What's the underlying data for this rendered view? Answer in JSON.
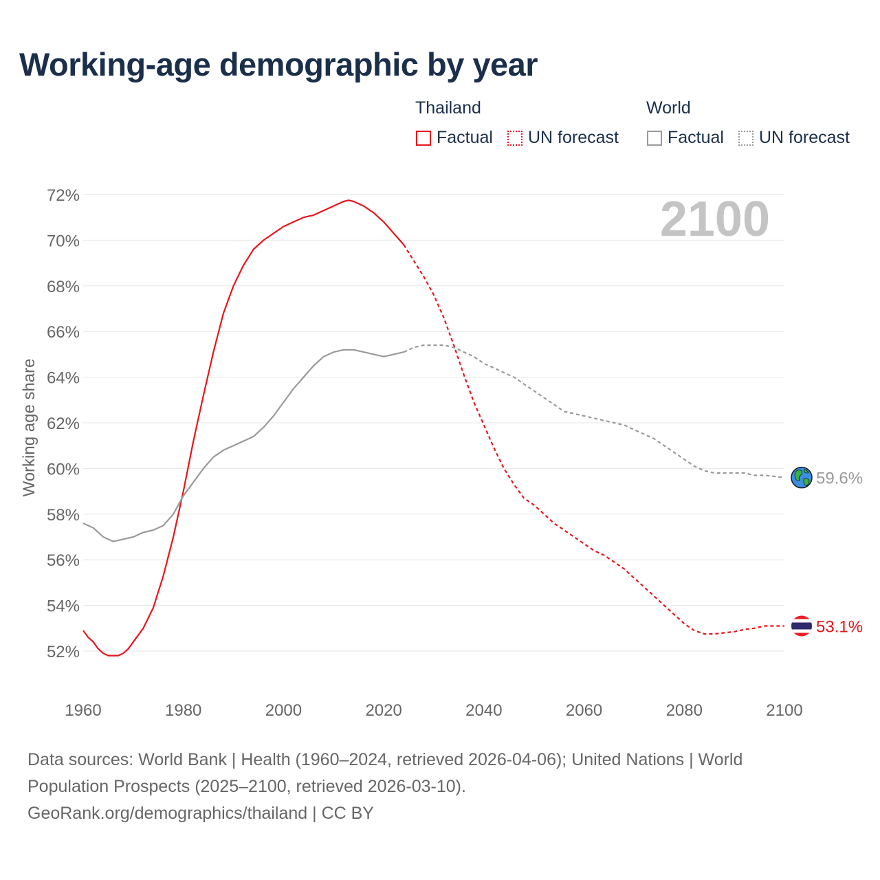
{
  "title": "Working-age demographic by year",
  "legend": {
    "thailand_label": "Thailand",
    "world_label": "World",
    "factual_label": "Factual",
    "forecast_label": "UN forecast"
  },
  "colors": {
    "thailand": "#e8151b",
    "world": "#9a9a9a",
    "title": "#1b2f4b",
    "year_watermark": "#c4c4c4"
  },
  "source": {
    "line1": "Data sources: World Bank | Health (1960–2024, retrieved 2026-04-06); United Nations | World Population Prospects (2025–2100, retrieved 2026-03-10).",
    "line2": "GeoRank.org/demographics/thailand | CC BY"
  },
  "chart_data": {
    "type": "line",
    "title": "Working-age demographic by year",
    "ylabel": "Working age share",
    "xlabel": "",
    "xlim": [
      1960,
      2100
    ],
    "ylim": [
      51,
      72.4
    ],
    "x_ticks": [
      1960,
      1980,
      2000,
      2020,
      2040,
      2060,
      2080,
      2100
    ],
    "x_tick_labels": [
      "1960",
      "1980",
      "2000",
      "2020",
      "2040",
      "2060",
      "2080",
      "2100"
    ],
    "y_ticks": [
      52,
      54,
      56,
      58,
      60,
      62,
      64,
      66,
      68,
      70,
      72
    ],
    "y_tick_labels": [
      "52%",
      "54%",
      "56%",
      "58%",
      "60%",
      "62%",
      "64%",
      "66%",
      "68%",
      "70%",
      "72%"
    ],
    "year_watermark": "2100",
    "factual_end_year": 2024,
    "grid": true,
    "legend_position": "top-right",
    "series": [
      {
        "name": "Thailand",
        "color": "#e8151b",
        "end_label": "53.1%",
        "end_icon": "thailand-flag",
        "x": [
          1960,
          1961,
          1962,
          1963,
          1964,
          1965,
          1966,
          1967,
          1968,
          1969,
          1970,
          1972,
          1974,
          1976,
          1978,
          1980,
          1982,
          1984,
          1986,
          1988,
          1990,
          1992,
          1994,
          1996,
          1998,
          2000,
          2002,
          2004,
          2006,
          2008,
          2010,
          2011,
          2012,
          2013,
          2014,
          2016,
          2018,
          2020,
          2022,
          2024,
          2026,
          2028,
          2030,
          2032,
          2034,
          2036,
          2038,
          2040,
          2042,
          2044,
          2046,
          2048,
          2050,
          2052,
          2054,
          2056,
          2058,
          2060,
          2062,
          2064,
          2066,
          2068,
          2070,
          2072,
          2074,
          2076,
          2078,
          2080,
          2082,
          2084,
          2086,
          2088,
          2090,
          2092,
          2094,
          2096,
          2098,
          2100
        ],
        "values": [
          52.9,
          52.6,
          52.4,
          52.1,
          51.9,
          51.8,
          51.8,
          51.8,
          51.9,
          52.1,
          52.4,
          53.0,
          53.9,
          55.3,
          57.0,
          59.0,
          61.2,
          63.2,
          65.1,
          66.8,
          68.0,
          68.9,
          69.6,
          70.0,
          70.3,
          70.6,
          70.8,
          71.0,
          71.1,
          71.3,
          71.5,
          71.6,
          71.7,
          71.75,
          71.7,
          71.5,
          71.2,
          70.8,
          70.3,
          69.8,
          69.1,
          68.4,
          67.6,
          66.6,
          65.4,
          64.1,
          62.9,
          61.9,
          60.9,
          60.0,
          59.3,
          58.7,
          58.4,
          58.0,
          57.6,
          57.3,
          57.0,
          56.7,
          56.4,
          56.2,
          55.9,
          55.6,
          55.2,
          54.8,
          54.4,
          54.0,
          53.6,
          53.2,
          52.9,
          52.75,
          52.75,
          52.8,
          52.85,
          52.95,
          53.0,
          53.1,
          53.1,
          53.1
        ]
      },
      {
        "name": "World",
        "color": "#9a9a9a",
        "end_label": "59.6%",
        "end_icon": "globe",
        "x": [
          1960,
          1962,
          1964,
          1966,
          1968,
          1970,
          1972,
          1974,
          1976,
          1978,
          1980,
          1982,
          1984,
          1986,
          1988,
          1990,
          1992,
          1994,
          1996,
          1998,
          2000,
          2002,
          2004,
          2006,
          2008,
          2010,
          2012,
          2014,
          2016,
          2018,
          2020,
          2022,
          2024,
          2026,
          2028,
          2030,
          2032,
          2034,
          2036,
          2038,
          2040,
          2042,
          2044,
          2046,
          2048,
          2050,
          2052,
          2054,
          2056,
          2058,
          2060,
          2062,
          2064,
          2066,
          2068,
          2070,
          2072,
          2074,
          2076,
          2078,
          2080,
          2082,
          2084,
          2086,
          2088,
          2090,
          2092,
          2094,
          2096,
          2098,
          2100
        ],
        "values": [
          57.6,
          57.4,
          57.0,
          56.8,
          56.9,
          57.0,
          57.2,
          57.3,
          57.5,
          58.0,
          58.8,
          59.4,
          60.0,
          60.5,
          60.8,
          61.0,
          61.2,
          61.4,
          61.8,
          62.3,
          62.9,
          63.5,
          64.0,
          64.5,
          64.9,
          65.1,
          65.2,
          65.2,
          65.1,
          65.0,
          64.9,
          65.0,
          65.1,
          65.3,
          65.4,
          65.4,
          65.4,
          65.3,
          65.1,
          64.9,
          64.6,
          64.4,
          64.2,
          64.0,
          63.7,
          63.4,
          63.1,
          62.8,
          62.5,
          62.4,
          62.3,
          62.2,
          62.1,
          62.0,
          61.9,
          61.7,
          61.5,
          61.3,
          61.0,
          60.7,
          60.4,
          60.1,
          59.9,
          59.8,
          59.8,
          59.8,
          59.8,
          59.7,
          59.7,
          59.65,
          59.6
        ]
      }
    ]
  }
}
